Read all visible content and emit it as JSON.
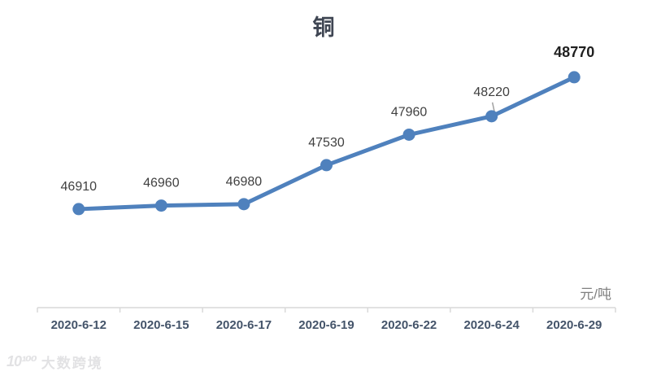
{
  "chart_data": {
    "type": "line",
    "title": "铜",
    "unit_label": "元/吨",
    "categories": [
      "2020-6-12",
      "2020-6-15",
      "2020-6-17",
      "2020-6-19",
      "2020-6-22",
      "2020-6-24",
      "2020-6-29"
    ],
    "values": [
      46910,
      46960,
      46980,
      47530,
      47960,
      48220,
      48770
    ],
    "data_labels": [
      "46910",
      "46960",
      "46980",
      "47530",
      "47960",
      "48220",
      "48770"
    ],
    "ylim": [
      45520,
      49860
    ],
    "grid": "off",
    "legend": "none",
    "last_point_emphasized": true,
    "leader_line_index": 5,
    "colors": {
      "line": "#4f81bd",
      "marker": "#4f81bd",
      "data_label": "#404040",
      "emphasized_label": "#1f1f1f",
      "axis": "#d9d9d9",
      "x_label": "#44546a",
      "title": "#3f4653",
      "unit": "#7f7f7f",
      "leader": "#a0a0a0"
    }
  },
  "watermark": {
    "logo": "10¹⁰⁰",
    "text": "大数跨境"
  }
}
